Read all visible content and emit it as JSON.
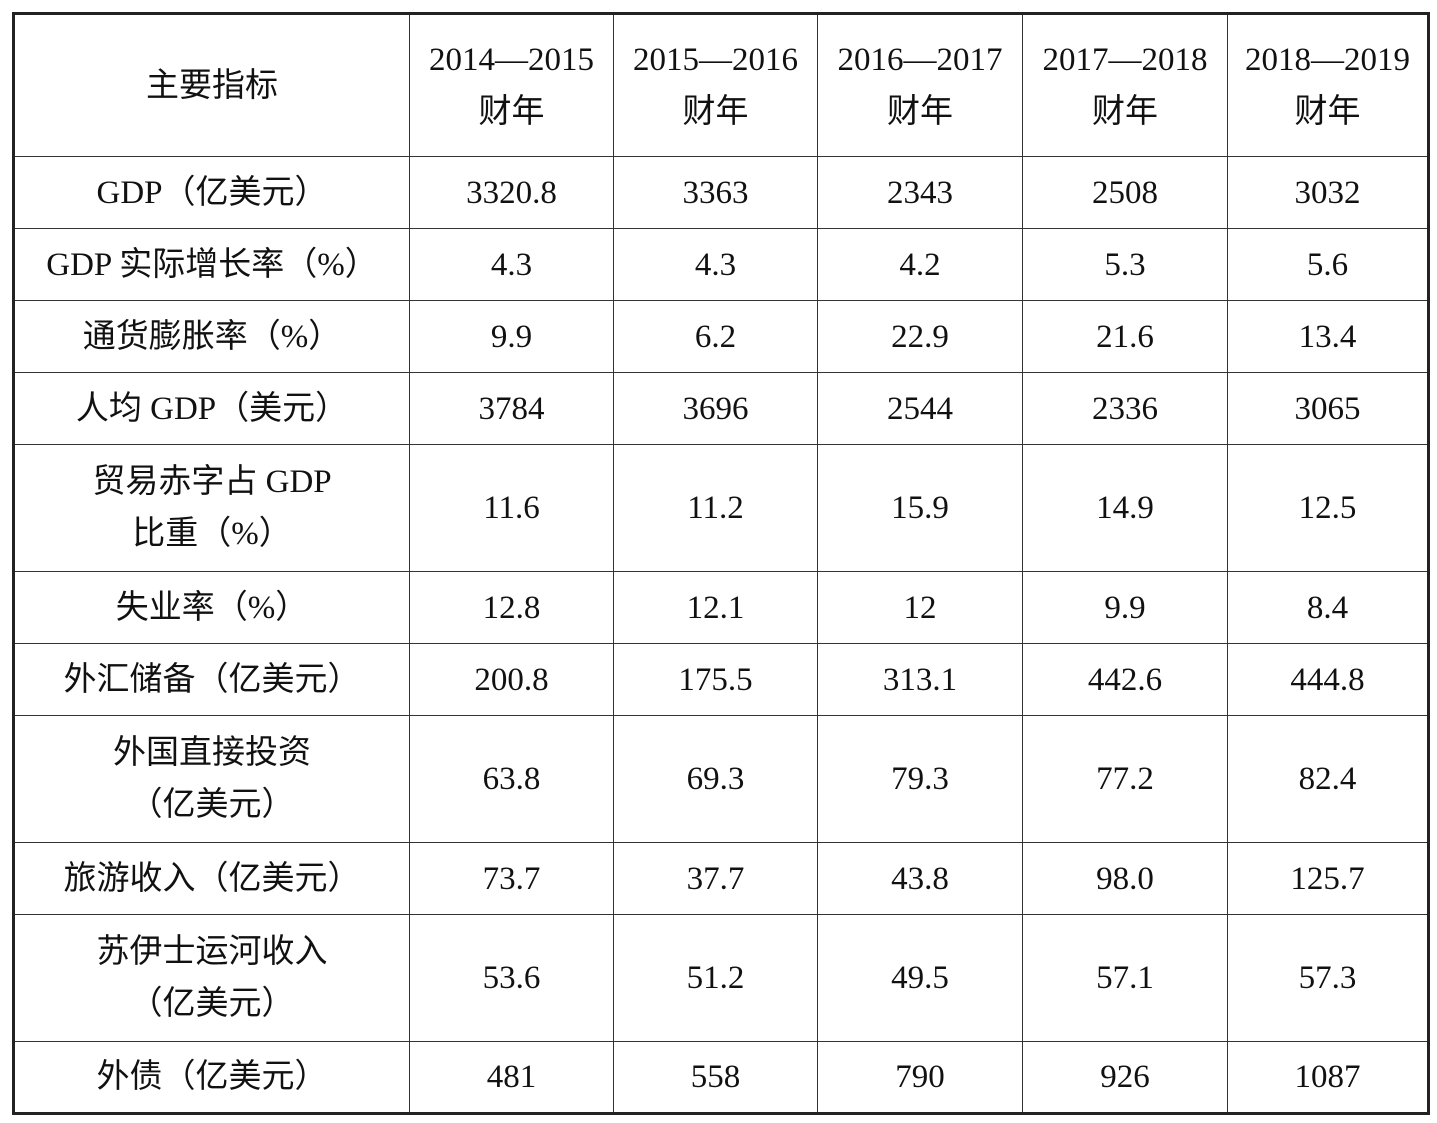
{
  "table": {
    "header": [
      [
        "主要指标"
      ],
      [
        "2014—2015",
        "财年"
      ],
      [
        "2015—2016",
        "财年"
      ],
      [
        "2016—2017",
        "财年"
      ],
      [
        "2017—2018",
        "财年"
      ],
      [
        "2018—2019",
        "财年"
      ]
    ],
    "rows": [
      {
        "label": [
          "GDP（亿美元）"
        ],
        "values": [
          "3320.8",
          "3363",
          "2343",
          "2508",
          "3032"
        ]
      },
      {
        "label": [
          "GDP 实际增长率（%）"
        ],
        "values": [
          "4.3",
          "4.3",
          "4.2",
          "5.3",
          "5.6"
        ]
      },
      {
        "label": [
          "通货膨胀率（%）"
        ],
        "values": [
          "9.9",
          "6.2",
          "22.9",
          "21.6",
          "13.4"
        ]
      },
      {
        "label": [
          "人均 GDP（美元）"
        ],
        "values": [
          "3784",
          "3696",
          "2544",
          "2336",
          "3065"
        ]
      },
      {
        "label": [
          "贸易赤字占 GDP",
          "比重（%）"
        ],
        "values": [
          "11.6",
          "11.2",
          "15.9",
          "14.9",
          "12.5"
        ]
      },
      {
        "label": [
          "失业率（%）"
        ],
        "values": [
          "12.8",
          "12.1",
          "12",
          "9.9",
          "8.4"
        ]
      },
      {
        "label": [
          "外汇储备（亿美元）"
        ],
        "values": [
          "200.8",
          "175.5",
          "313.1",
          "442.6",
          "444.8"
        ]
      },
      {
        "label": [
          "外国直接投资",
          "（亿美元）"
        ],
        "values": [
          "63.8",
          "69.3",
          "79.3",
          "77.2",
          "82.4"
        ]
      },
      {
        "label": [
          "旅游收入（亿美元）"
        ],
        "values": [
          "73.7",
          "37.7",
          "43.8",
          "98.0",
          "125.7"
        ]
      },
      {
        "label": [
          "苏伊士运河收入",
          "（亿美元）"
        ],
        "values": [
          "53.6",
          "51.2",
          "49.5",
          "57.1",
          "57.3"
        ]
      },
      {
        "label": [
          "外债（亿美元）"
        ],
        "values": [
          "481",
          "558",
          "790",
          "926",
          "1087"
        ]
      }
    ]
  }
}
